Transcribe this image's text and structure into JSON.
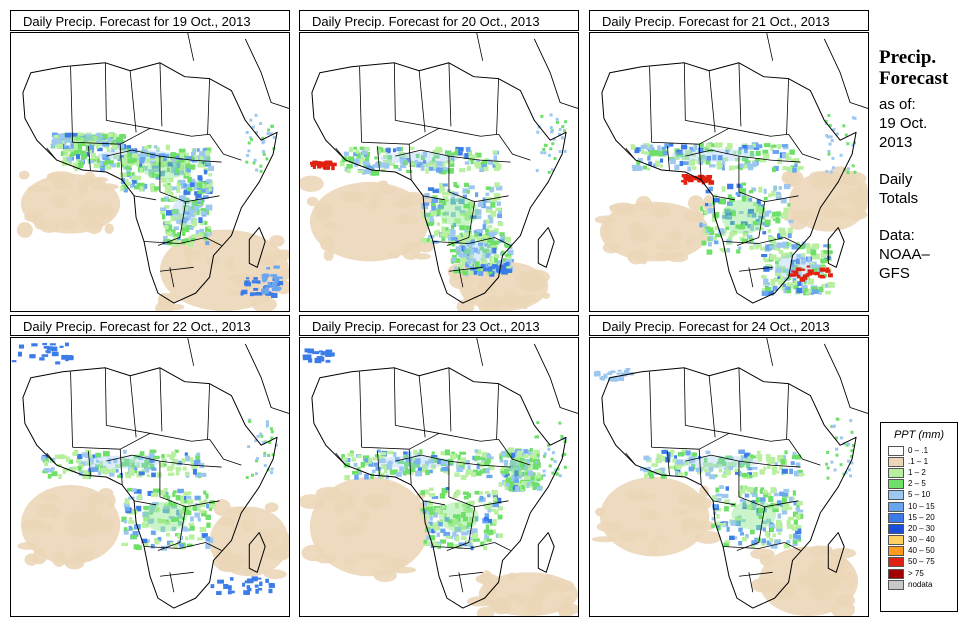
{
  "panels": [
    {
      "title": "Daily Precip. Forecast for  19 Oct., 2013"
    },
    {
      "title": "Daily Precip. Forecast for  20 Oct., 2013"
    },
    {
      "title": "Daily Precip. Forecast for  21 Oct., 2013"
    },
    {
      "title": "Daily Precip. Forecast for  22 Oct., 2013"
    },
    {
      "title": "Daily Precip. Forecast for  23 Oct., 2013"
    },
    {
      "title": "Daily Precip. Forecast for  24 Oct., 2013"
    }
  ],
  "sidebar": {
    "title_line1": "Precip.",
    "title_line2": "Forecast",
    "asof_label": "as of:",
    "asof_date_line1": "19 Oct.",
    "asof_date_line2": "2013",
    "totals_line1": "Daily",
    "totals_line2": "Totals",
    "data_line1": "Data:",
    "data_line2": "NOAA–",
    "data_line3": "GFS"
  },
  "legend": {
    "title": "PPT (mm)",
    "items": [
      {
        "label": "0 – .1",
        "color": "#ffffff"
      },
      {
        "label": ".1 – 1",
        "color": "#ebd6b8"
      },
      {
        "label": "1 – 2",
        "color": "#b8f0a0"
      },
      {
        "label": "2 – 5",
        "color": "#6ee06a"
      },
      {
        "label": "5 – 10",
        "color": "#9cc8f0"
      },
      {
        "label": "10 – 15",
        "color": "#6aa6f0"
      },
      {
        "label": "15 – 20",
        "color": "#3c7ce8"
      },
      {
        "label": "20 – 30",
        "color": "#1a4ed8"
      },
      {
        "label": "30 – 40",
        "color": "#ffd060"
      },
      {
        "label": "40 – 50",
        "color": "#ff9a20"
      },
      {
        "label": "50 – 75",
        "color": "#e02010"
      },
      {
        "label": "> 75",
        "color": "#a00000"
      },
      {
        "label": "nodata",
        "color": "#c8c8c8"
      }
    ]
  }
}
